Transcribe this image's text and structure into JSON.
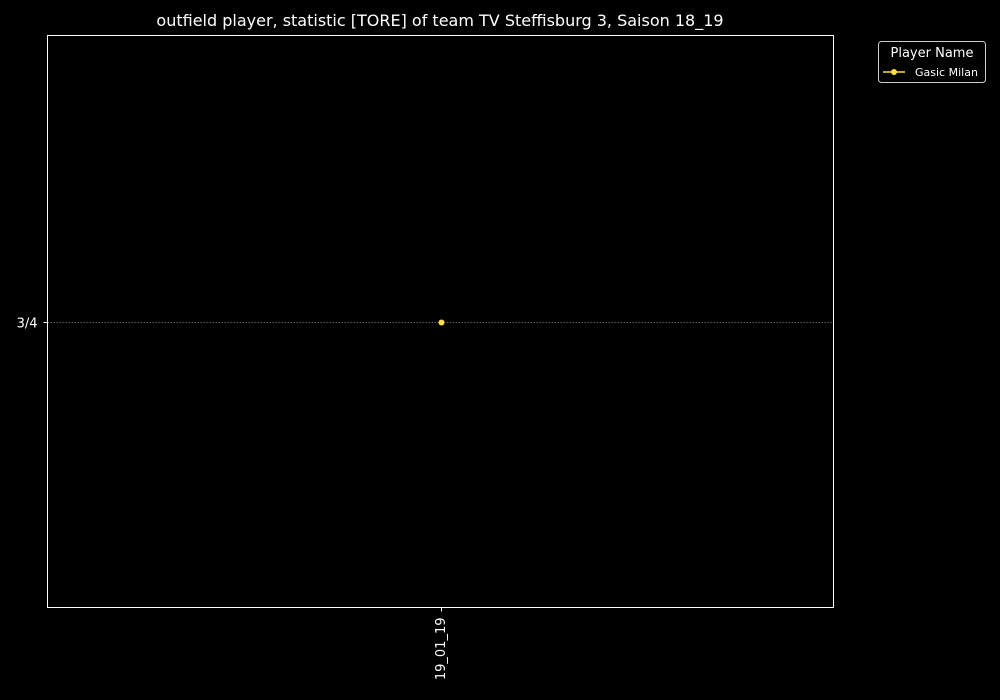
{
  "chart_data": {
    "type": "line",
    "title": "outfield player, statistic [TORE] of team TV Steffisburg 3, Saison 18_19",
    "xlabel": "",
    "ylabel": "",
    "categories": [
      "19_01_19"
    ],
    "y_categories": [
      "3/4"
    ],
    "series": [
      {
        "name": "Gasic Milan",
        "color": "#ffe135",
        "points": [
          {
            "x": "19_01_19",
            "y": "3/4"
          }
        ]
      }
    ],
    "legend": {
      "title": "Player Name",
      "position": "outside-top-right"
    },
    "grid": "horizontal-dotted",
    "background": "#000000",
    "foreground": "#ffffff"
  }
}
